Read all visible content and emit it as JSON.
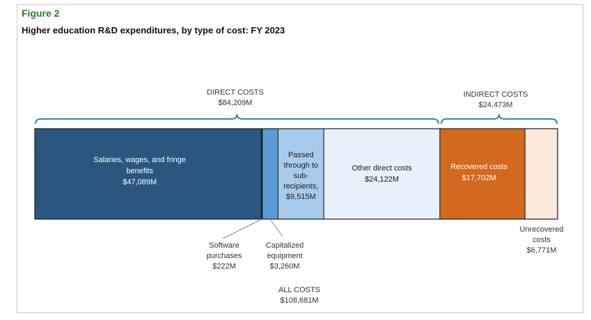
{
  "figure": {
    "label": "Figure 2",
    "title": "Higher education R&D expenditures, by type of cost: FY 2023"
  },
  "chart_data": {
    "type": "bar",
    "orientation": "horizontal-stacked",
    "groups": [
      {
        "name": "DIRECT COSTS",
        "value_label": "$84,209M",
        "value": 84209
      },
      {
        "name": "INDIRECT COSTS",
        "value_label": "$24,473M",
        "value": 24473
      }
    ],
    "segments": [
      {
        "name": "Salaries, wages, and fringe benefits",
        "value": 47089,
        "value_label": "$47,089M",
        "group": "DIRECT COSTS",
        "color": "#2a5680"
      },
      {
        "name": "Software purchases",
        "value": 222,
        "value_label": "$222M",
        "group": "DIRECT COSTS",
        "color": "#1f3f66"
      },
      {
        "name": "Capitalized equipment",
        "value": 3260,
        "value_label": "$3,260M",
        "group": "DIRECT COSTS",
        "color": "#5b9bd5"
      },
      {
        "name": "Passed through to sub-recipients",
        "value": 9515,
        "value_label": "$9,515M",
        "group": "DIRECT COSTS",
        "color": "#a9cbeb"
      },
      {
        "name": "Other direct costs",
        "value": 24122,
        "value_label": "$24,122M",
        "group": "DIRECT COSTS",
        "color": "#e6f1fb"
      },
      {
        "name": "Recovered costs",
        "value": 17702,
        "value_label": "$17,702M",
        "group": "INDIRECT COSTS",
        "color": "#d2691e"
      },
      {
        "name": "Unrecovered costs",
        "value": 6771,
        "value_label": "$6,771M",
        "group": "INDIRECT COSTS",
        "color": "#fde9d9"
      }
    ],
    "total": {
      "name": "ALL COSTS",
      "value": 108681,
      "value_label": "$108,681M"
    }
  },
  "label_lines": {
    "salaries": [
      "Salaries, wages, and fringe",
      "benefits",
      "$47,089M"
    ],
    "passed": [
      "Passed",
      "through to",
      "sub-",
      "recipients,",
      "$9,515M"
    ],
    "other": [
      "Other direct costs",
      "$24,122M"
    ],
    "recovered": [
      "Recovered costs",
      "$17,702M"
    ],
    "software": [
      "Software",
      "purchases",
      "$222M"
    ],
    "capitalized": [
      "Capitalized",
      "equipment",
      "$3,260M"
    ],
    "unrecovered": [
      "Unrecovered",
      "costs",
      "$6,771M"
    ]
  }
}
